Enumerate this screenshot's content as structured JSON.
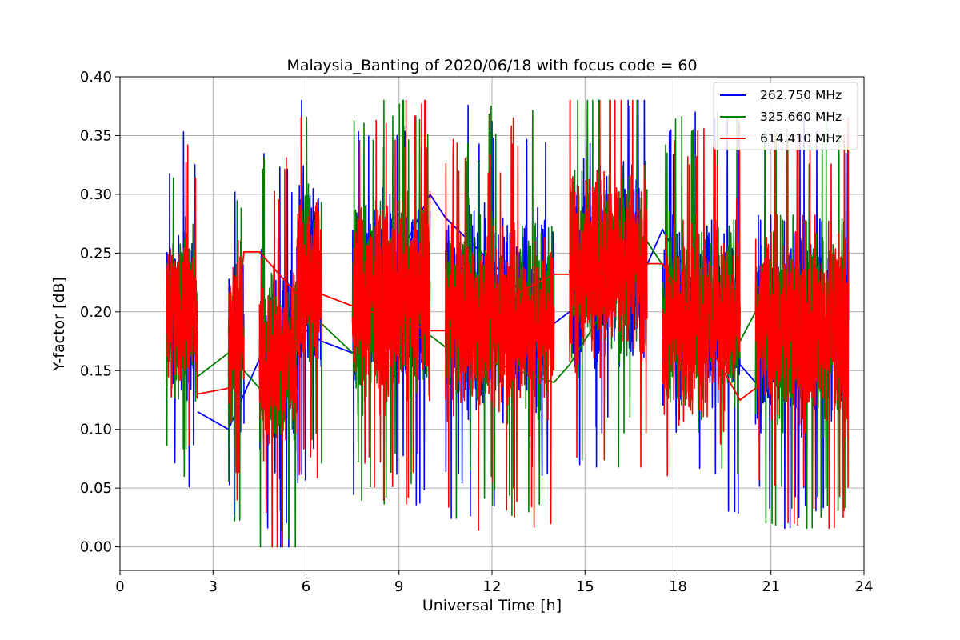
{
  "chart_data": {
    "type": "line",
    "title": "Malaysia_Banting of 2020/06/18 with focus code = 60",
    "xlabel": "Universal Time [h]",
    "ylabel": "Y-factor [dB]",
    "xlim": [
      0,
      24
    ],
    "ylim": [
      -0.02,
      0.4
    ],
    "xticks": [
      0,
      3,
      6,
      9,
      12,
      15,
      18,
      21,
      24
    ],
    "xtick_labels": [
      "0",
      "3",
      "6",
      "9",
      "12",
      "15",
      "18",
      "21",
      "24"
    ],
    "yticks": [
      0.0,
      0.05,
      0.1,
      0.15,
      0.2,
      0.25,
      0.3,
      0.35,
      0.4
    ],
    "ytick_labels": [
      "0.00",
      "0.05",
      "0.10",
      "0.15",
      "0.20",
      "0.25",
      "0.30",
      "0.35",
      "0.40"
    ],
    "grid": true,
    "legend_position": "top-right",
    "segments": [
      {
        "start": 1.5,
        "end": 2.5
      },
      {
        "start": 3.5,
        "end": 4.0
      },
      {
        "start": 4.5,
        "end": 5.7
      },
      {
        "start": 5.7,
        "end": 6.5
      },
      {
        "start": 7.5,
        "end": 10.0
      },
      {
        "start": 10.5,
        "end": 14.0
      },
      {
        "start": 14.5,
        "end": 17.0
      },
      {
        "start": 17.5,
        "end": 20.0
      },
      {
        "start": 20.5,
        "end": 23.5
      }
    ],
    "series": [
      {
        "name": "262.750 MHz",
        "color": "#0000ff",
        "approx_mean": [
          0.2,
          0.17,
          0.16,
          0.23,
          0.21,
          0.2,
          0.24,
          0.2,
          0.19
        ],
        "approx_spread": [
          0.07,
          0.07,
          0.08,
          0.08,
          0.08,
          0.08,
          0.08,
          0.08,
          0.08
        ],
        "gap_values": [
          [
            2.5,
            0.115
          ],
          [
            3.5,
            0.1
          ],
          [
            4.5,
            0.16
          ],
          [
            5.7,
            0.19
          ],
          [
            6.5,
            0.175
          ],
          [
            7.5,
            0.165
          ],
          [
            10.0,
            0.3
          ],
          [
            10.5,
            0.28
          ],
          [
            14.0,
            0.19
          ],
          [
            14.5,
            0.2
          ],
          [
            17.0,
            0.24
          ],
          [
            17.5,
            0.27
          ],
          [
            20.0,
            0.155
          ],
          [
            20.5,
            0.14
          ]
        ]
      },
      {
        "name": "325.660 MHz",
        "color": "#008000",
        "approx_mean": [
          0.2,
          0.17,
          0.16,
          0.23,
          0.21,
          0.2,
          0.24,
          0.2,
          0.19
        ],
        "approx_spread": [
          0.07,
          0.07,
          0.08,
          0.08,
          0.08,
          0.08,
          0.08,
          0.08,
          0.08
        ],
        "gap_values": [
          [
            2.5,
            0.145
          ],
          [
            3.5,
            0.165
          ],
          [
            4.5,
            0.135
          ],
          [
            5.7,
            0.19
          ],
          [
            6.5,
            0.19
          ],
          [
            7.5,
            0.165
          ],
          [
            10.0,
            0.18
          ],
          [
            10.5,
            0.17
          ],
          [
            14.0,
            0.14
          ],
          [
            14.5,
            0.155
          ],
          [
            17.0,
            0.26
          ],
          [
            17.5,
            0.24
          ],
          [
            20.0,
            0.175
          ],
          [
            20.5,
            0.2
          ]
        ]
      },
      {
        "name": "614.410 MHz",
        "color": "#ff0000",
        "approx_mean": [
          0.2,
          0.18,
          0.16,
          0.23,
          0.21,
          0.19,
          0.24,
          0.19,
          0.19
        ],
        "approx_spread": [
          0.07,
          0.07,
          0.08,
          0.08,
          0.08,
          0.08,
          0.08,
          0.08,
          0.08
        ],
        "gap_values": [
          [
            2.5,
            0.13
          ],
          [
            3.5,
            0.135
          ],
          [
            4.0,
            0.251
          ],
          [
            4.5,
            0.251
          ],
          [
            5.7,
            0.215
          ],
          [
            6.5,
            0.215
          ],
          [
            7.5,
            0.205
          ],
          [
            10.0,
            0.184
          ],
          [
            10.5,
            0.184
          ],
          [
            14.0,
            0.232
          ],
          [
            14.5,
            0.232
          ],
          [
            17.0,
            0.241
          ],
          [
            17.5,
            0.241
          ],
          [
            20.0,
            0.125
          ],
          [
            20.5,
            0.135
          ]
        ]
      }
    ]
  }
}
